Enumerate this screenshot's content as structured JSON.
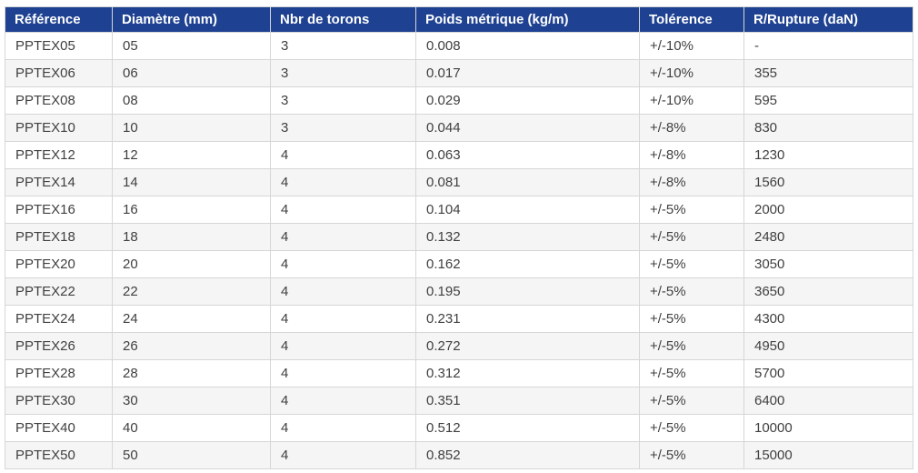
{
  "table": {
    "columns": [
      "Référence",
      "Diamètre (mm)",
      "Nbr de torons",
      "Poids métrique (kg/m)",
      "Tolérence",
      "R/Rupture (daN)"
    ],
    "rows": [
      [
        "PPTEX05",
        "05",
        "3",
        "0.008",
        "+/-10%",
        "-"
      ],
      [
        "PPTEX06",
        "06",
        "3",
        "0.017",
        "+/-10%",
        "355"
      ],
      [
        "PPTEX08",
        "08",
        "3",
        "0.029",
        "+/-10%",
        "595"
      ],
      [
        "PPTEX10",
        "10",
        "3",
        "0.044",
        "+/-8%",
        "830"
      ],
      [
        "PPTEX12",
        "12",
        "4",
        "0.063",
        "+/-8%",
        "1230"
      ],
      [
        "PPTEX14",
        "14",
        "4",
        "0.081",
        "+/-8%",
        "1560"
      ],
      [
        "PPTEX16",
        "16",
        "4",
        "0.104",
        "+/-5%",
        "2000"
      ],
      [
        "PPTEX18",
        "18",
        "4",
        "0.132",
        "+/-5%",
        "2480"
      ],
      [
        "PPTEX20",
        "20",
        "4",
        "0.162",
        "+/-5%",
        "3050"
      ],
      [
        "PPTEX22",
        "22",
        "4",
        "0.195",
        "+/-5%",
        "3650"
      ],
      [
        "PPTEX24",
        "24",
        "4",
        "0.231",
        "+/-5%",
        "4300"
      ],
      [
        "PPTEX26",
        "26",
        "4",
        "0.272",
        "+/-5%",
        "4950"
      ],
      [
        "PPTEX28",
        "28",
        "4",
        "0.312",
        "+/-5%",
        "5700"
      ],
      [
        "PPTEX30",
        "30",
        "4",
        "0.351",
        "+/-5%",
        "6400"
      ],
      [
        "PPTEX40",
        "40",
        "4",
        "0.512",
        "+/-5%",
        "10000"
      ],
      [
        "PPTEX50",
        "50",
        "4",
        "0.852",
        "+/-5%",
        "15000"
      ]
    ]
  },
  "colors": {
    "header_bg": "#1e4191",
    "header_text": "#ffffff",
    "row_bg": "#ffffff",
    "row_alt_bg": "#f5f5f5",
    "border": "#d6d6d6",
    "cell_text": "#404040"
  },
  "chart_data": {
    "type": "table",
    "columns": [
      "Référence",
      "Diamètre (mm)",
      "Nbr de torons",
      "Poids métrique (kg/m)",
      "Tolérence",
      "R/Rupture (daN)"
    ],
    "rows": [
      [
        "PPTEX05",
        "05",
        "3",
        "0.008",
        "+/-10%",
        "-"
      ],
      [
        "PPTEX06",
        "06",
        "3",
        "0.017",
        "+/-10%",
        "355"
      ],
      [
        "PPTEX08",
        "08",
        "3",
        "0.029",
        "+/-10%",
        "595"
      ],
      [
        "PPTEX10",
        "10",
        "3",
        "0.044",
        "+/-8%",
        "830"
      ],
      [
        "PPTEX12",
        "12",
        "4",
        "0.063",
        "+/-8%",
        "1230"
      ],
      [
        "PPTEX14",
        "14",
        "4",
        "0.081",
        "+/-8%",
        "1560"
      ],
      [
        "PPTEX16",
        "16",
        "4",
        "0.104",
        "+/-5%",
        "2000"
      ],
      [
        "PPTEX18",
        "18",
        "4",
        "0.132",
        "+/-5%",
        "2480"
      ],
      [
        "PPTEX20",
        "20",
        "4",
        "0.162",
        "+/-5%",
        "3050"
      ],
      [
        "PPTEX22",
        "22",
        "4",
        "0.195",
        "+/-5%",
        "3650"
      ],
      [
        "PPTEX24",
        "24",
        "4",
        "0.231",
        "+/-5%",
        "4300"
      ],
      [
        "PPTEX26",
        "26",
        "4",
        "0.272",
        "+/-5%",
        "4950"
      ],
      [
        "PPTEX28",
        "28",
        "4",
        "0.312",
        "+/-5%",
        "5700"
      ],
      [
        "PPTEX30",
        "30",
        "4",
        "0.351",
        "+/-5%",
        "6400"
      ],
      [
        "PPTEX40",
        "40",
        "4",
        "0.512",
        "+/-5%",
        "10000"
      ],
      [
        "PPTEX50",
        "50",
        "4",
        "0.852",
        "+/-5%",
        "15000"
      ]
    ]
  }
}
